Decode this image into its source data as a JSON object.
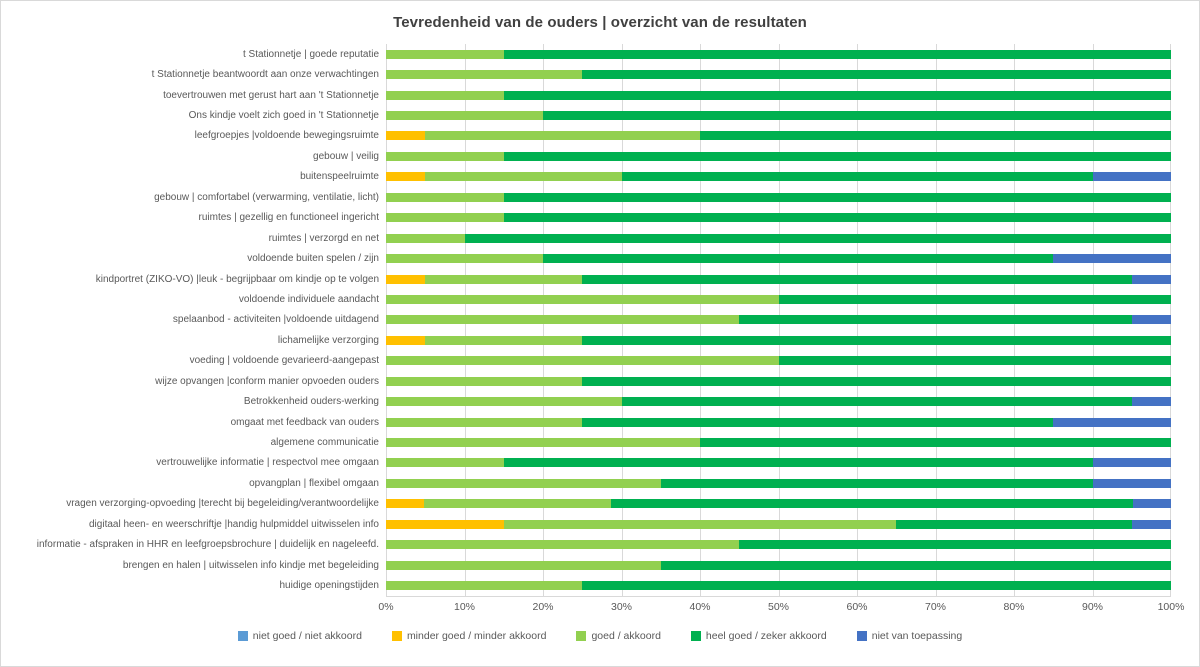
{
  "chart_data": {
    "type": "bar",
    "orientation": "horizontal",
    "stacked": true,
    "title": "Tevredenheid van de ouders | overzicht van de resultaten",
    "xlabel": "",
    "ylabel": "",
    "xlim": [
      0,
      100
    ],
    "grid": true,
    "legend_position": "bottom",
    "axis_ticks": [
      "0%",
      "10%",
      "20%",
      "30%",
      "40%",
      "50%",
      "60%",
      "70%",
      "80%",
      "90%",
      "100%"
    ],
    "categories": [
      "t Stationnetje | goede reputatie",
      "t Stationnetje beantwoordt aan onze verwachtingen",
      "toevertrouwen met gerust hart aan 't Stationnetje",
      "Ons kindje voelt zich goed in 't Stationnetje",
      "leefgroepjes |voldoende bewegingsruimte",
      "gebouw | veilig",
      "buitenspeelruimte",
      "gebouw | comfortabel (verwarming, ventilatie, licht)",
      "ruimtes | gezellig en functioneel ingericht",
      "ruimtes | verzorgd en net",
      "voldoende buiten spelen / zijn",
      "kindportret (ZIKO-VO) |leuk - begrijpbaar om kindje op te volgen",
      "voldoende individuele aandacht",
      "spelaanbod - activiteiten |voldoende uitdagend",
      "lichamelijke verzorging",
      "voeding | voldoende gevarieerd-aangepast",
      "wijze opvangen |conform manier opvoeden ouders",
      "Betrokkenheid ouders-werking",
      "omgaat met feedback van ouders",
      "algemene communicatie",
      "vertrouwelijke informatie | respectvol mee omgaan",
      "opvangplan | flexibel omgaan",
      "vragen verzorging-opvoeding |terecht bij begeleiding/verantwoordelijke",
      "digitaal heen- en weerschriftje |handig hulpmiddel uitwisselen info",
      "informatie - afspraken in HHR en leefgroepsbrochure | duidelijk en nageleefd.",
      "brengen en halen | uitwisselen info kindje met begeleiding",
      "huidige openingstijden"
    ],
    "series": [
      {
        "name": "niet goed / niet akkoord",
        "color": "#5B9BD5",
        "values": [
          0,
          0,
          0,
          0,
          0,
          0,
          0,
          0,
          0,
          0,
          0,
          0,
          0,
          0,
          0,
          0,
          0,
          0,
          0,
          0,
          0,
          0,
          0,
          0,
          0,
          0,
          0
        ]
      },
      {
        "name": "minder goed / minder akkoord",
        "color": "#FFC000",
        "values": [
          0,
          0,
          0,
          0,
          5,
          0,
          5,
          0,
          0,
          0,
          0,
          5,
          0,
          0,
          5,
          0,
          0,
          0,
          0,
          0,
          0,
          0,
          4.8,
          15,
          0,
          0,
          0
        ]
      },
      {
        "name": "goed / akkoord",
        "color": "#92D050",
        "values": [
          15,
          25,
          15,
          20,
          35,
          15,
          25,
          15,
          15,
          10,
          20,
          20,
          50,
          45,
          20,
          50,
          25,
          30,
          25,
          40,
          15,
          35,
          23.8,
          50,
          45,
          35,
          25
        ]
      },
      {
        "name": "heel goed / zeker akkoord",
        "color": "#00B050",
        "values": [
          85,
          75,
          85,
          80,
          60,
          85,
          60,
          85,
          85,
          90,
          65,
          70,
          50,
          50,
          75,
          50,
          75,
          65,
          60,
          60,
          75,
          55,
          66.6,
          30,
          55,
          65,
          75
        ]
      },
      {
        "name": "niet van toepassing",
        "color": "#4472C4",
        "values": [
          0,
          0,
          0,
          0,
          0,
          0,
          10,
          0,
          0,
          0,
          15,
          5,
          0,
          5,
          0,
          0,
          0,
          5,
          15,
          0,
          10,
          10,
          4.8,
          5,
          0,
          0,
          0
        ]
      }
    ]
  }
}
